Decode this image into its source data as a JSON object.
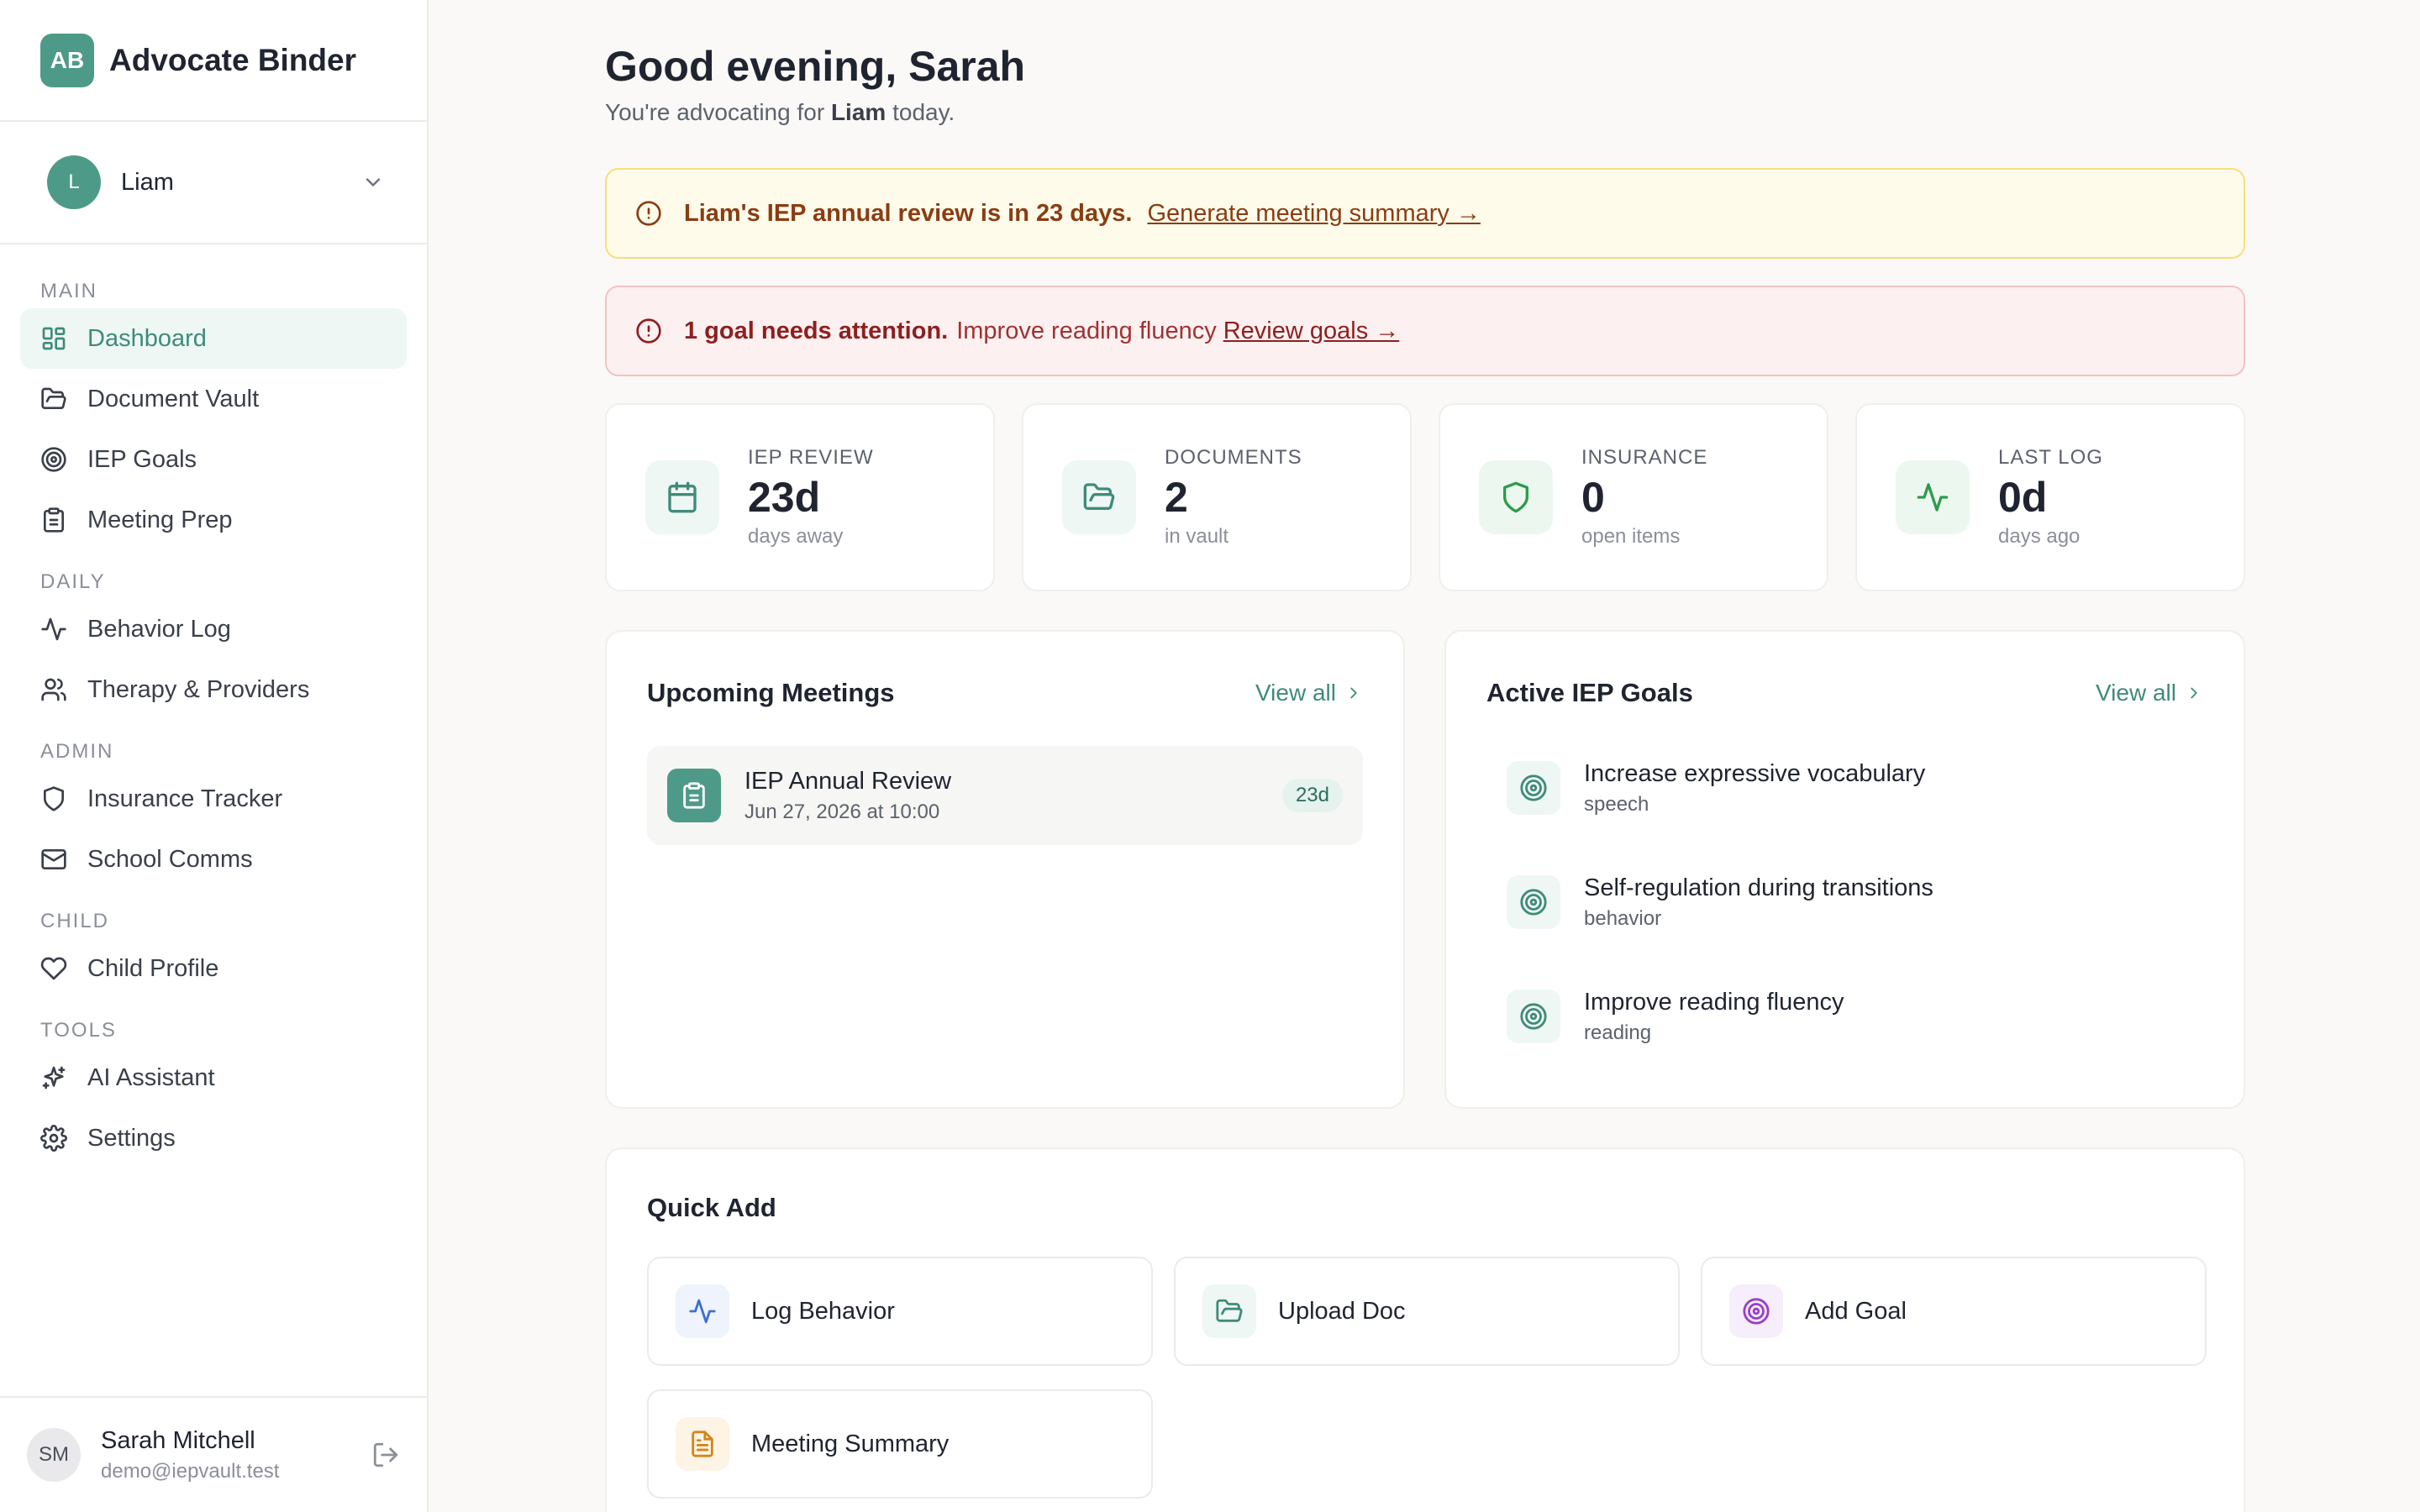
{
  "brand": {
    "logo_text": "AB",
    "name": "Advocate Binder"
  },
  "child_picker": {
    "initial": "L",
    "name": "Liam"
  },
  "nav": {
    "sections": [
      {
        "title": "MAIN",
        "items": [
          {
            "label": "Dashboard",
            "icon": "dashboard-icon",
            "active": true
          },
          {
            "label": "Document Vault",
            "icon": "folder-icon"
          },
          {
            "label": "IEP Goals",
            "icon": "target-icon"
          },
          {
            "label": "Meeting Prep",
            "icon": "clipboard-icon"
          }
        ]
      },
      {
        "title": "DAILY",
        "items": [
          {
            "label": "Behavior Log",
            "icon": "activity-icon"
          },
          {
            "label": "Therapy & Providers",
            "icon": "users-icon"
          }
        ]
      },
      {
        "title": "ADMIN",
        "items": [
          {
            "label": "Insurance Tracker",
            "icon": "shield-icon"
          },
          {
            "label": "School Comms",
            "icon": "mail-icon"
          }
        ]
      },
      {
        "title": "CHILD",
        "items": [
          {
            "label": "Child Profile",
            "icon": "heart-icon"
          }
        ]
      },
      {
        "title": "TOOLS",
        "items": [
          {
            "label": "AI Assistant",
            "icon": "sparkles-icon"
          },
          {
            "label": "Settings",
            "icon": "gear-icon"
          }
        ]
      }
    ]
  },
  "user": {
    "initials": "SM",
    "name": "Sarah Mitchell",
    "email": "demo@iepvault.test"
  },
  "header": {
    "greeting": "Good evening, Sarah",
    "sub_prefix": "You're advocating for",
    "sub_child": "Liam",
    "sub_suffix": "today."
  },
  "alerts": {
    "review": {
      "strong": "Liam's IEP annual review is in 23 days.",
      "link": "Generate meeting summary →"
    },
    "goals": {
      "strong": "1 goal needs attention.",
      "text": "Improve reading fluency",
      "link": "Review goals →"
    }
  },
  "stats": [
    {
      "label": "IEP REVIEW",
      "value": "23d",
      "sub": "days away",
      "icon": "calendar-icon",
      "bg": "#eef7f4",
      "fg": "#3f8b79"
    },
    {
      "label": "DOCUMENTS",
      "value": "2",
      "sub": "in vault",
      "icon": "folder-icon",
      "bg": "#eef7f4",
      "fg": "#3f8b79"
    },
    {
      "label": "INSURANCE",
      "value": "0",
      "sub": "open items",
      "icon": "shield-icon",
      "bg": "#ecf8ef",
      "fg": "#2f9a4e"
    },
    {
      "label": "LAST LOG",
      "value": "0d",
      "sub": "days ago",
      "icon": "activity-icon",
      "bg": "#ecf8ef",
      "fg": "#2f9a4e"
    }
  ],
  "meetings": {
    "title": "Upcoming Meetings",
    "view_all": "View all",
    "items": [
      {
        "title": "IEP Annual Review",
        "date": "Jun 27, 2026 at 10:00",
        "badge": "23d"
      }
    ]
  },
  "goals": {
    "title": "Active IEP Goals",
    "view_all": "View all",
    "items": [
      {
        "title": "Increase expressive vocabulary",
        "category": "speech"
      },
      {
        "title": "Self-regulation during transitions",
        "category": "behavior"
      },
      {
        "title": "Improve reading fluency",
        "category": "reading"
      }
    ]
  },
  "quick_add": {
    "title": "Quick Add",
    "items": [
      {
        "label": "Log Behavior",
        "icon": "activity-icon",
        "bg": "#eef3fc",
        "fg": "#3f6fd1"
      },
      {
        "label": "Upload Doc",
        "icon": "folder-icon",
        "bg": "#eef7f4",
        "fg": "#3f8b79"
      },
      {
        "label": "Add Goal",
        "icon": "target-icon",
        "bg": "#f6eefb",
        "fg": "#9b3fc4"
      },
      {
        "label": "Meeting Summary",
        "icon": "document-icon",
        "bg": "#fdf4e6",
        "fg": "#d4861c"
      }
    ]
  }
}
